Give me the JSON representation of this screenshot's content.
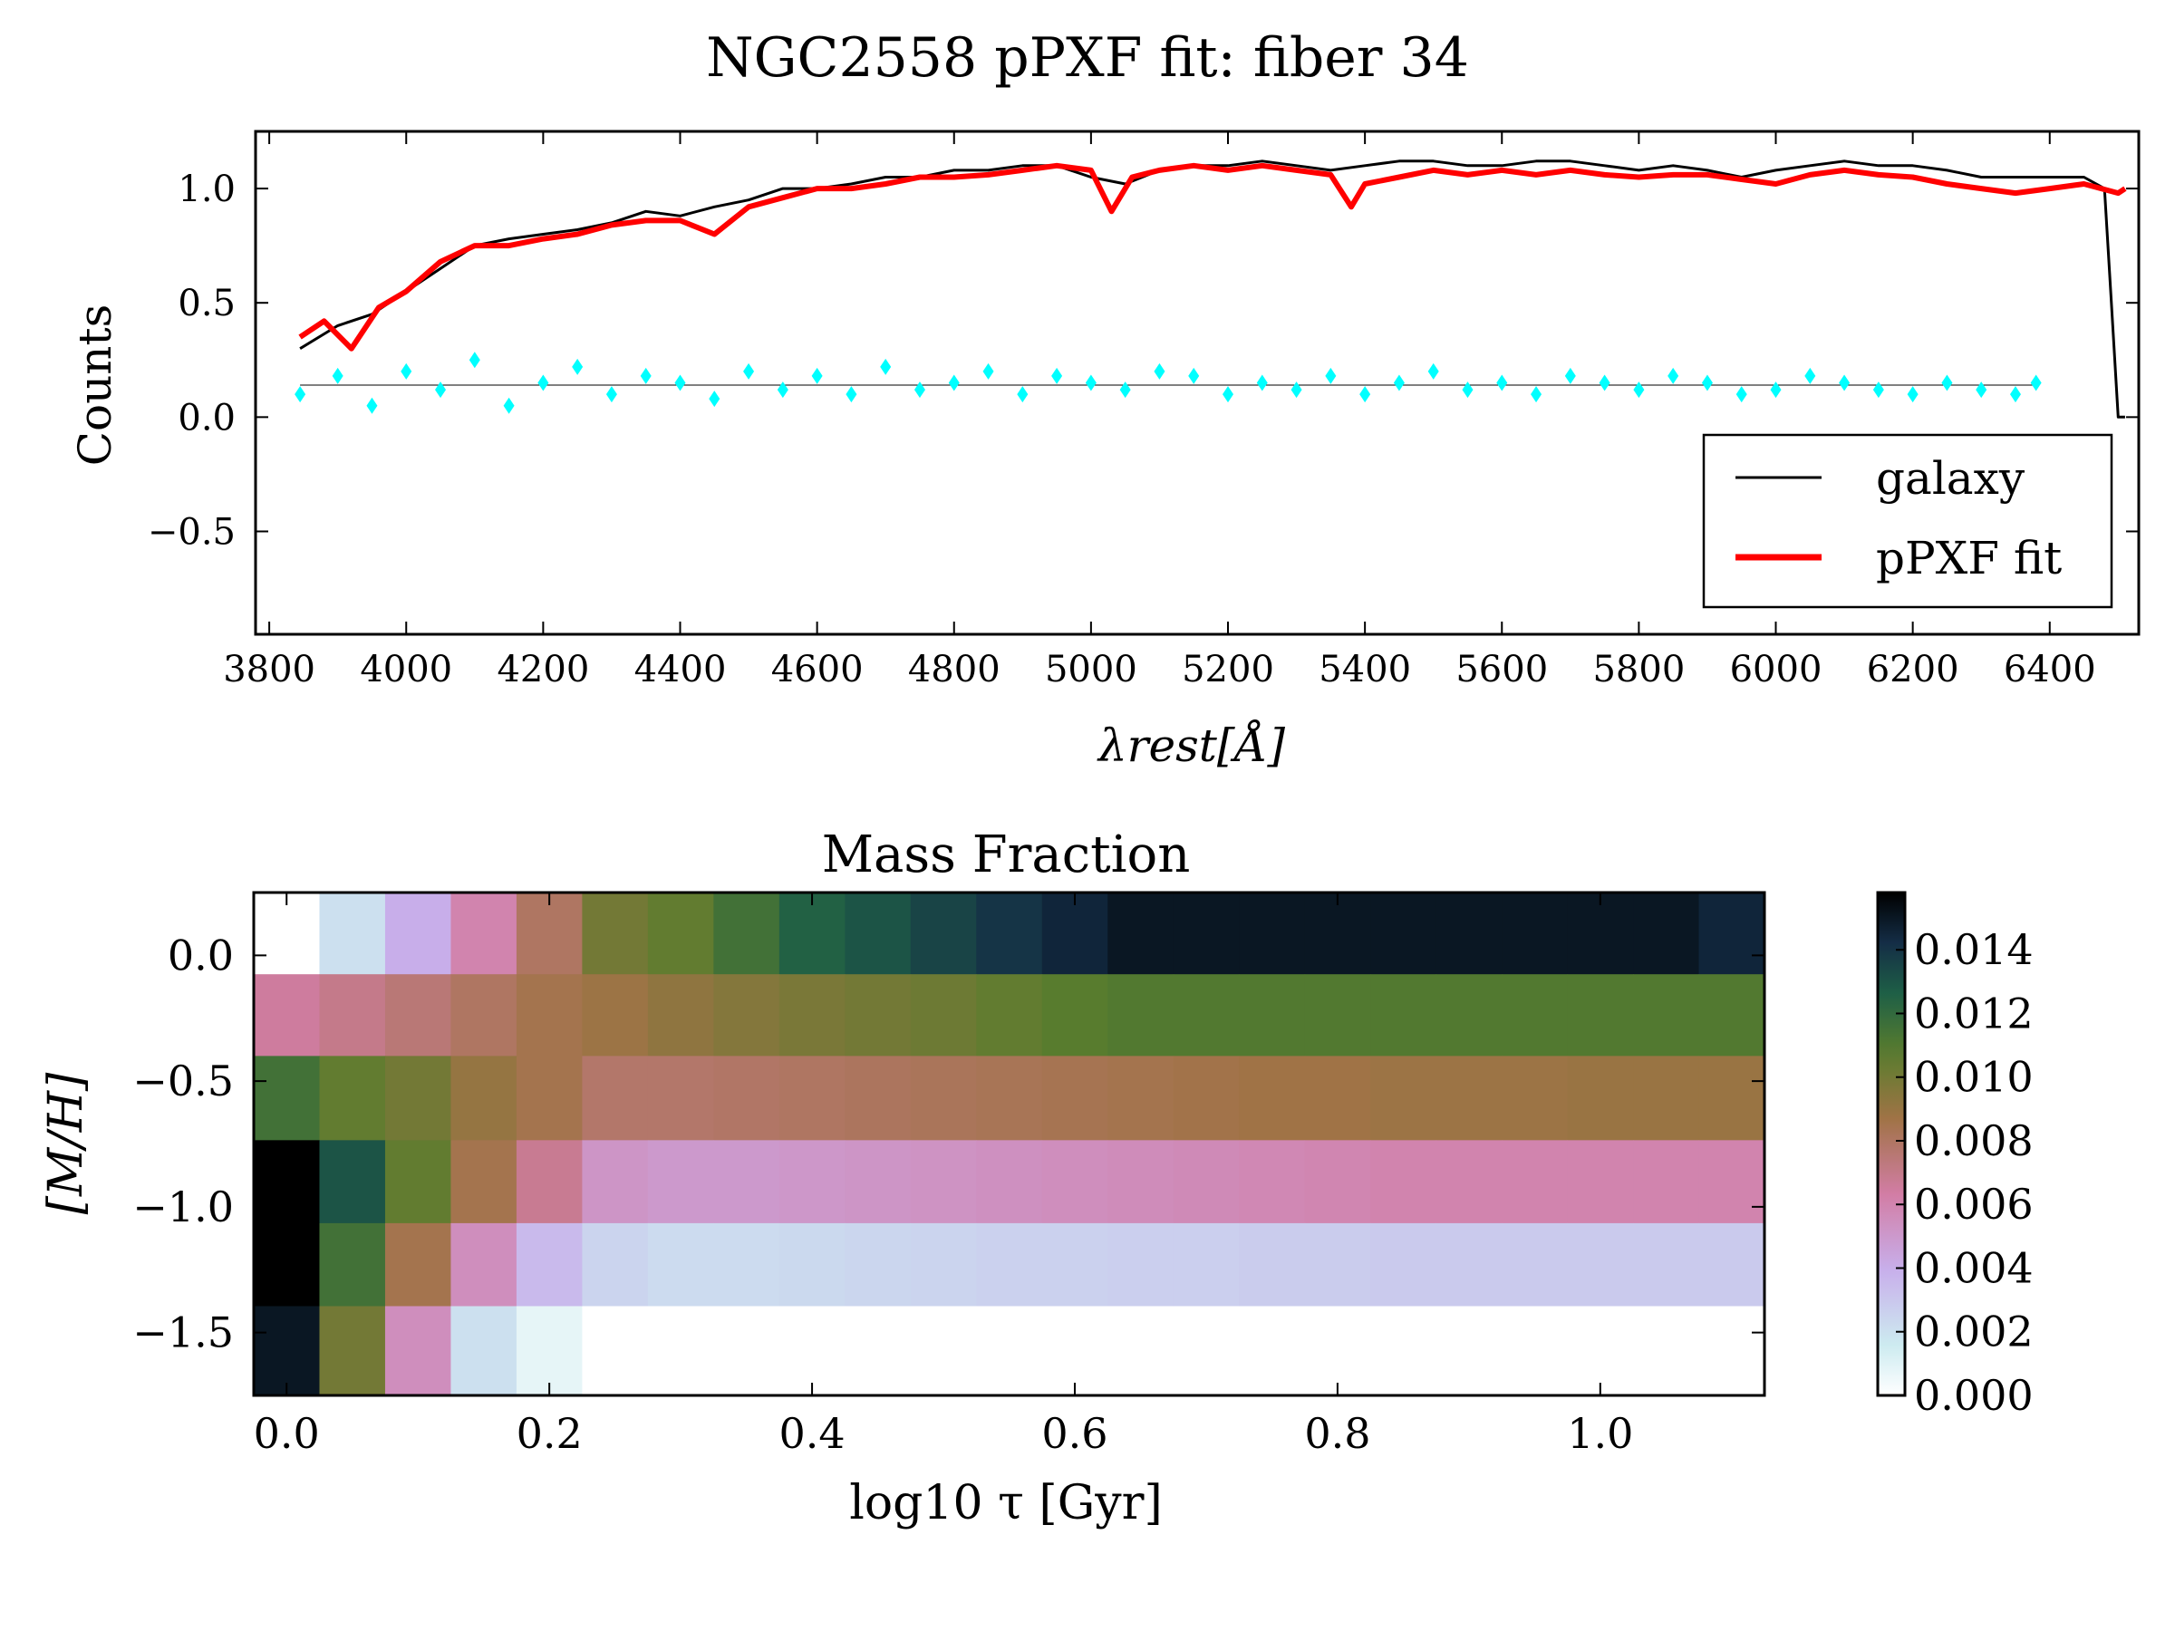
{
  "figure": {
    "title": "NGC2558 pPXF fit: fiber 34"
  },
  "chart_data": [
    {
      "type": "line",
      "title": "NGC2558 pPXF fit: fiber 34",
      "xlabel": "λrest[Å]",
      "ylabel": "Counts",
      "xlim": [
        3780,
        6530
      ],
      "ylim": [
        -0.95,
        1.25
      ],
      "xticks": [
        "3800",
        "4000",
        "4200",
        "4400",
        "4600",
        "4800",
        "5000",
        "5200",
        "5400",
        "5600",
        "5800",
        "6000",
        "6200",
        "6400"
      ],
      "yticks": [
        "−0.5",
        "0.0",
        "0.5",
        "1.0"
      ],
      "legend_position": "lower-right",
      "series": [
        {
          "name": "galaxy",
          "color": "#000000",
          "x": [
            3845,
            3900,
            3950,
            4000,
            4050,
            4100,
            4150,
            4200,
            4250,
            4300,
            4350,
            4400,
            4450,
            4500,
            4550,
            4600,
            4650,
            4700,
            4750,
            4800,
            4850,
            4900,
            4950,
            5000,
            5050,
            5100,
            5150,
            5200,
            5250,
            5300,
            5350,
            5400,
            5450,
            5500,
            5550,
            5600,
            5650,
            5700,
            5750,
            5800,
            5850,
            5900,
            5950,
            6000,
            6050,
            6100,
            6150,
            6200,
            6250,
            6300,
            6350,
            6400,
            6450,
            6480,
            6490,
            6500,
            6510
          ],
          "y": [
            0.3,
            0.4,
            0.45,
            0.55,
            0.65,
            0.75,
            0.78,
            0.8,
            0.82,
            0.85,
            0.9,
            0.88,
            0.92,
            0.95,
            1.0,
            1.0,
            1.02,
            1.05,
            1.05,
            1.08,
            1.08,
            1.1,
            1.1,
            1.05,
            1.02,
            1.08,
            1.1,
            1.1,
            1.12,
            1.1,
            1.08,
            1.1,
            1.12,
            1.12,
            1.1,
            1.1,
            1.12,
            1.12,
            1.1,
            1.08,
            1.1,
            1.08,
            1.05,
            1.08,
            1.1,
            1.12,
            1.1,
            1.1,
            1.08,
            1.05,
            1.05,
            1.05,
            1.05,
            1.0,
            0.5,
            0.0,
            0.0
          ]
        },
        {
          "name": "pPXF fit",
          "color": "#ff0000",
          "x": [
            3845,
            3880,
            3920,
            3960,
            4000,
            4050,
            4100,
            4150,
            4200,
            4250,
            4300,
            4350,
            4400,
            4450,
            4500,
            4550,
            4600,
            4650,
            4700,
            4750,
            4800,
            4850,
            4900,
            4950,
            5000,
            5030,
            5060,
            5100,
            5150,
            5200,
            5250,
            5300,
            5350,
            5380,
            5400,
            5450,
            5500,
            5550,
            5600,
            5650,
            5700,
            5750,
            5800,
            5850,
            5900,
            5950,
            6000,
            6050,
            6100,
            6150,
            6200,
            6250,
            6300,
            6350,
            6400,
            6450,
            6500,
            6510
          ],
          "y": [
            0.35,
            0.42,
            0.3,
            0.48,
            0.55,
            0.68,
            0.75,
            0.75,
            0.78,
            0.8,
            0.84,
            0.86,
            0.86,
            0.8,
            0.92,
            0.96,
            1.0,
            1.0,
            1.02,
            1.05,
            1.05,
            1.06,
            1.08,
            1.1,
            1.08,
            0.9,
            1.05,
            1.08,
            1.1,
            1.08,
            1.1,
            1.08,
            1.06,
            0.92,
            1.02,
            1.05,
            1.08,
            1.06,
            1.08,
            1.06,
            1.08,
            1.06,
            1.05,
            1.06,
            1.06,
            1.04,
            1.02,
            1.06,
            1.08,
            1.06,
            1.05,
            1.02,
            1.0,
            0.98,
            1.0,
            1.02,
            0.98,
            1.0
          ]
        },
        {
          "name": "",
          "color": "#00ffff",
          "x": [
            3845,
            3900,
            3950,
            4000,
            4050,
            4100,
            4150,
            4200,
            4250,
            4300,
            4350,
            4400,
            4450,
            4500,
            4550,
            4600,
            4650,
            4700,
            4750,
            4800,
            4850,
            4900,
            4950,
            5000,
            5050,
            5100,
            5150,
            5200,
            5250,
            5300,
            5350,
            5400,
            5450,
            5500,
            5550,
            5600,
            5650,
            5700,
            5750,
            5800,
            5850,
            5900,
            5950,
            6000,
            6050,
            6100,
            6150,
            6200,
            6250,
            6300,
            6350,
            6380
          ],
          "y": [
            0.1,
            0.18,
            0.05,
            0.2,
            0.12,
            0.25,
            0.05,
            0.15,
            0.22,
            0.1,
            0.18,
            0.15,
            0.08,
            0.2,
            0.12,
            0.18,
            0.1,
            0.22,
            0.12,
            0.15,
            0.2,
            0.1,
            0.18,
            0.15,
            0.12,
            0.2,
            0.18,
            0.1,
            0.15,
            0.12,
            0.18,
            0.1,
            0.15,
            0.2,
            0.12,
            0.15,
            0.1,
            0.18,
            0.15,
            0.12,
            0.18,
            0.15,
            0.1,
            0.12,
            0.18,
            0.15,
            0.12,
            0.1,
            0.15,
            0.12,
            0.1,
            0.15
          ]
        }
      ],
      "legend": [
        {
          "label": "galaxy",
          "color": "#000000"
        },
        {
          "label": "pPXF fit",
          "color": "#ff0000"
        }
      ]
    },
    {
      "type": "heatmap",
      "title": "Mass Fraction",
      "xlabel": "log10 τ [Gyr]",
      "ylabel": "[M/H]",
      "x_ticks": [
        "0.0",
        "0.2",
        "0.4",
        "0.6",
        "0.8",
        "1.0"
      ],
      "x_tick_values": [
        0.0,
        0.2,
        0.4,
        0.6,
        0.8,
        1.0
      ],
      "y_ticks": [
        "0.0",
        "−0.5",
        "−1.0",
        "−1.5"
      ],
      "y_tick_values": [
        0.0,
        -0.5,
        -1.0,
        -1.5
      ],
      "xlim": [
        -0.025,
        1.125
      ],
      "ylim": [
        -1.75,
        0.25
      ],
      "x_centers": [
        0.0,
        0.05,
        0.1,
        0.15,
        0.2,
        0.25,
        0.3,
        0.35,
        0.4,
        0.45,
        0.5,
        0.55,
        0.6,
        0.65,
        0.7,
        0.75,
        0.8,
        0.85,
        0.9,
        0.95,
        1.0,
        1.05,
        1.1
      ],
      "y_centers": [
        0.0,
        -0.33,
        -0.66,
        -0.99,
        -1.32,
        -1.5
      ],
      "row_bounds": [
        [
          -0.075,
          0.25
        ],
        [
          -0.4,
          -0.075
        ],
        [
          -0.735,
          -0.4
        ],
        [
          -1.065,
          -0.735
        ],
        [
          -1.395,
          -1.065
        ],
        [
          -1.75,
          -1.395
        ]
      ],
      "values": [
        [
          0.0,
          0.002,
          0.004,
          0.006,
          0.008,
          0.01,
          0.0105,
          0.0115,
          0.0125,
          0.013,
          0.0135,
          0.014,
          0.0145,
          0.015,
          0.015,
          0.015,
          0.015,
          0.015,
          0.015,
          0.015,
          0.015,
          0.015,
          0.0145
        ],
        [
          0.0065,
          0.007,
          0.0075,
          0.008,
          0.0085,
          0.0088,
          0.0092,
          0.0095,
          0.0098,
          0.01,
          0.0102,
          0.0105,
          0.0108,
          0.011,
          0.011,
          0.011,
          0.011,
          0.011,
          0.011,
          0.011,
          0.011,
          0.011,
          0.011
        ],
        [
          0.0115,
          0.0105,
          0.01,
          0.009,
          0.0085,
          0.0078,
          0.0078,
          0.0079,
          0.008,
          0.0081,
          0.0082,
          0.0083,
          0.0084,
          0.0085,
          0.0086,
          0.0087,
          0.0087,
          0.0088,
          0.0088,
          0.0088,
          0.0089,
          0.0089,
          0.0089
        ],
        [
          0.0158,
          0.013,
          0.0105,
          0.0085,
          0.0068,
          0.0052,
          0.005,
          0.005,
          0.0051,
          0.0052,
          0.0053,
          0.0054,
          0.0055,
          0.0056,
          0.0057,
          0.0058,
          0.0059,
          0.006,
          0.006,
          0.006,
          0.006,
          0.006,
          0.006
        ],
        [
          0.0158,
          0.0115,
          0.0085,
          0.0055,
          0.0035,
          0.0025,
          0.0022,
          0.0022,
          0.0023,
          0.0024,
          0.0025,
          0.0026,
          0.0026,
          0.0027,
          0.0027,
          0.0028,
          0.0028,
          0.0029,
          0.0029,
          0.0029,
          0.0029,
          0.0029,
          0.0029
        ],
        [
          0.015,
          0.01,
          0.0055,
          0.002,
          0.0008,
          0.0,
          0.0,
          0.0,
          0.0,
          0.0,
          0.0,
          0.0,
          0.0,
          0.0,
          0.0,
          0.0,
          0.0,
          0.0,
          0.0,
          0.0,
          0.0,
          0.0,
          0.0
        ]
      ],
      "colorbar": {
        "vmin": 0.0,
        "vmax": 0.0158,
        "ticks": [
          "0.000",
          "0.002",
          "0.004",
          "0.006",
          "0.008",
          "0.010",
          "0.012",
          "0.014"
        ],
        "tick_values": [
          0.0,
          0.002,
          0.004,
          0.006,
          0.008,
          0.01,
          0.012,
          0.014
        ]
      }
    }
  ]
}
